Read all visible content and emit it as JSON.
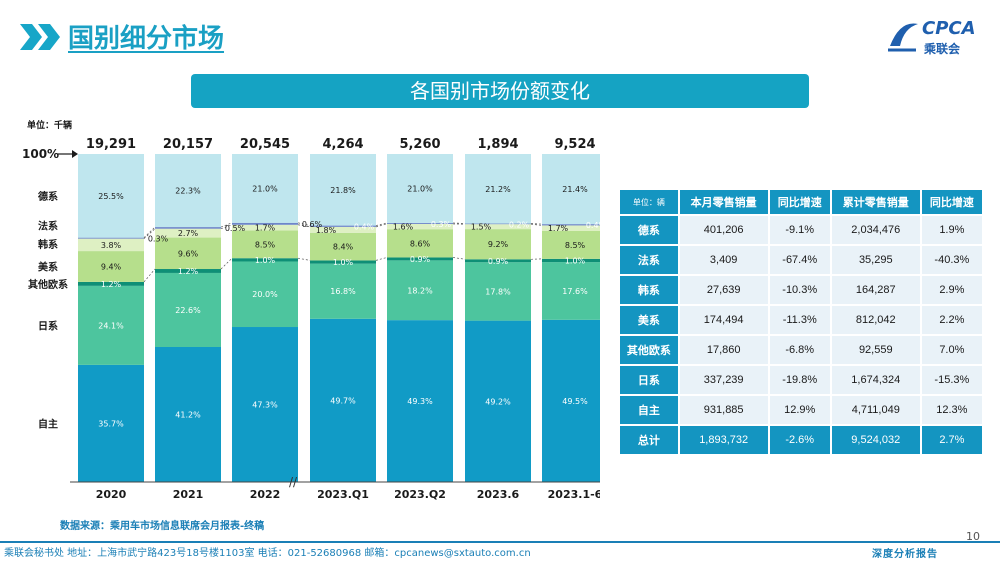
{
  "header": {
    "title": "国别细分市场",
    "logo_text": "CPCA",
    "logo_sub": "乘联会"
  },
  "banner": {
    "title": "各国别市场份额变化"
  },
  "chart_data": {
    "type": "bar",
    "unit_label": "单位：千辆",
    "pct100_label": "100%",
    "categories": [
      "2020",
      "2021",
      "2022",
      "2023.Q1",
      "2023.Q2",
      "2023.6",
      "2023.1-6"
    ],
    "totals": [
      "19,291",
      "20,157",
      "20,545",
      "4,264",
      "5,260",
      "1,894",
      "9,524"
    ],
    "ylim": [
      0,
      100
    ],
    "series": [
      {
        "name": "自主",
        "color": "#119bc6",
        "values": [
          35.7,
          41.2,
          47.3,
          49.7,
          49.3,
          49.2,
          49.5
        ]
      },
      {
        "name": "日系",
        "color": "#4dc59e",
        "values": [
          24.1,
          22.6,
          20.0,
          16.8,
          18.2,
          17.8,
          17.6
        ]
      },
      {
        "name": "其他欧系",
        "color": "#0e8f76",
        "values": [
          1.2,
          1.2,
          1.0,
          1.0,
          0.9,
          0.9,
          1.0
        ]
      },
      {
        "name": "美系",
        "color": "#b6df8c",
        "values": [
          9.4,
          9.6,
          8.5,
          8.4,
          8.6,
          9.2,
          8.5
        ]
      },
      {
        "name": "韩系",
        "color": "#def0c3",
        "values": [
          3.8,
          2.7,
          1.7,
          1.8,
          1.6,
          1.5,
          1.7
        ]
      },
      {
        "name": "法系",
        "color": "#6e86c9",
        "values": [
          0.3,
          0.5,
          0.6,
          0.4,
          0.3,
          0.2,
          0.4
        ]
      },
      {
        "name": "德系",
        "color": "#bfe6ee",
        "values": [
          25.5,
          22.3,
          21.0,
          21.8,
          21.0,
          21.2,
          21.4
        ]
      }
    ],
    "series_labels": [
      [
        "35.7%",
        "41.2%",
        "47.3%",
        "49.7%",
        "49.3%",
        "49.2%",
        "49.5%"
      ],
      [
        "24.1%",
        "22.6%",
        "20.0%",
        "16.8%",
        "18.2%",
        "17.8%",
        "17.6%"
      ],
      [
        "1.2%",
        "1.2%",
        "1.0%",
        "1.0%",
        "0.9%",
        "0.9%",
        "1.0%"
      ],
      [
        "9.4%",
        "9.6%",
        "8.5%",
        "8.4%",
        "8.6%",
        "9.2%",
        "8.5%"
      ],
      [
        "3.8%",
        "2.7%",
        "1.7%",
        "1.8%",
        "1.6%",
        "1.5%",
        "1.7%"
      ],
      [
        "0.3%",
        "0.5%",
        "0.6%",
        "0.4%",
        "0.3%",
        "0.2%",
        "0.4%"
      ],
      [
        "25.5%",
        "22.3%",
        "21.0%",
        "21.8%",
        "21.0%",
        "21.2%",
        "21.4%"
      ]
    ],
    "axis_break_symbol": "//"
  },
  "table": {
    "unit": "单位：辆",
    "headers": [
      "本月零售销量",
      "同比增速",
      "累计零售销量",
      "同比增速"
    ],
    "rows": [
      {
        "name": "德系",
        "cells": [
          "401,206",
          "-9.1%",
          "2,034,476",
          "1.9%"
        ]
      },
      {
        "name": "法系",
        "cells": [
          "3,409",
          "-67.4%",
          "35,295",
          "-40.3%"
        ]
      },
      {
        "name": "韩系",
        "cells": [
          "27,639",
          "-10.3%",
          "164,287",
          "2.9%"
        ]
      },
      {
        "name": "美系",
        "cells": [
          "174,494",
          "-11.3%",
          "812,042",
          "2.2%"
        ]
      },
      {
        "name": "其他欧系",
        "cells": [
          "17,860",
          "-6.8%",
          "92,559",
          "7.0%"
        ]
      },
      {
        "name": "日系",
        "cells": [
          "337,239",
          "-19.8%",
          "1,674,324",
          "-15.3%"
        ]
      },
      {
        "name": "自主",
        "cells": [
          "931,885",
          "12.9%",
          "4,711,049",
          "12.3%"
        ]
      }
    ],
    "total": {
      "name": "总计",
      "cells": [
        "1,893,732",
        "-2.6%",
        "9,524,032",
        "2.7%"
      ]
    }
  },
  "source": "数据来源：乘用车市场信息联席会月报表-终稿",
  "page_number": "10",
  "footer": {
    "contact": "乘联会秘书处   地址：上海市武宁路423号18号楼1103室   电话：021-52680968   邮箱：cpcanews@sxtauto.com.cn",
    "report": "深度分析报告"
  }
}
